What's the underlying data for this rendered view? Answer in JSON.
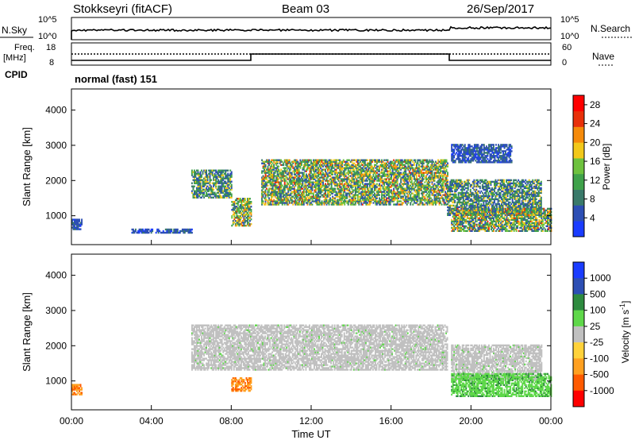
{
  "header": {
    "station": "Stokkseyri (fitACF)",
    "beam": "Beam 03",
    "date": "26/Sep/2017"
  },
  "noise_panel": {
    "left_label": "N.Sky",
    "left_ticks": [
      "10^5",
      "10^0"
    ],
    "right_ticks": [
      "10^5",
      "10^0"
    ],
    "right_label": "N.Search"
  },
  "freq_panel": {
    "left_label_1": "Freq.",
    "left_label_2": "[MHz]",
    "left_ticks": [
      "18",
      "8"
    ],
    "right_ticks": [
      "60",
      "0"
    ],
    "right_label": "Nave",
    "cpid_label": "CPID",
    "cpid_value": "normal (fast) 151"
  },
  "colors": {
    "power_scale": [
      "#1a3cff",
      "#2d4fb4",
      "#3a7a6a",
      "#3fa24a",
      "#6ec23e",
      "#f2c81a",
      "#f58a0a",
      "#e8300a",
      "#ff0000"
    ],
    "velocity_scale": [
      "#ff0000",
      "#ff5a00",
      "#ffa020",
      "#c8c8c8",
      "#c0c0c0",
      "#5fd84a",
      "#2e8b3f",
      "#1a3cff",
      "#1a3cff"
    ],
    "ground_scatter": "#c0c0c0"
  },
  "chart_data": [
    {
      "type": "heatmap",
      "name_axis": "",
      "xlabel": "",
      "ylabel": "Slant Range [km]",
      "xlim": [
        "00:00",
        "24:00"
      ],
      "ylim": [
        180,
        4600
      ],
      "y_ticks": [
        "1000",
        "2000",
        "3000",
        "4000"
      ],
      "colorbar": {
        "label": "Power [dB]",
        "ticks": [
          "4",
          "8",
          "12",
          "16",
          "20",
          "24",
          "28"
        ],
        "range": [
          0,
          30
        ]
      },
      "regions": [
        {
          "t_start": 0.0,
          "t_end": 0.5,
          "r_low": 600,
          "r_high": 900,
          "level": "low"
        },
        {
          "t_start": 3.0,
          "t_end": 6.0,
          "r_low": 500,
          "r_high": 600,
          "level": "low"
        },
        {
          "t_start": 6.0,
          "t_end": 8.0,
          "r_low": 1500,
          "r_high": 2300,
          "level": "mid"
        },
        {
          "t_start": 8.0,
          "t_end": 9.0,
          "r_low": 700,
          "r_high": 1500,
          "level": "high"
        },
        {
          "t_start": 9.5,
          "t_end": 18.8,
          "r_low": 1300,
          "r_high": 2600,
          "level": "high"
        },
        {
          "t_start": 18.8,
          "t_end": 23.5,
          "r_low": 1000,
          "r_high": 2000,
          "level": "mid"
        },
        {
          "t_start": 19.0,
          "t_end": 24.0,
          "r_low": 550,
          "r_high": 1200,
          "level": "high"
        },
        {
          "t_start": 19.0,
          "t_end": 22.0,
          "r_low": 2500,
          "r_high": 3000,
          "level": "low"
        }
      ]
    },
    {
      "type": "heatmap",
      "xlabel": "Time UT",
      "ylabel": "Slant Range [km]",
      "xlim": [
        "00:00",
        "24:00"
      ],
      "ylim": [
        180,
        4600
      ],
      "x_ticks": [
        "00:00",
        "04:00",
        "08:00",
        "12:00",
        "16:00",
        "20:00",
        "00:00"
      ],
      "y_ticks": [
        "1000",
        "2000",
        "3000",
        "4000"
      ],
      "colorbar": {
        "label_main": "Velocity [m s",
        "label_sup": "-1",
        "label_end": "]",
        "ticks": [
          "1000",
          "500",
          "100",
          "25",
          "-25",
          "-100",
          "-500",
          "-1000"
        ]
      },
      "regions": [
        {
          "t_start": 6.0,
          "t_end": 18.8,
          "r_low": 1300,
          "r_high": 2600,
          "level": "ground"
        },
        {
          "t_start": 19.0,
          "t_end": 23.5,
          "r_low": 1000,
          "r_high": 2000,
          "level": "ground"
        },
        {
          "t_start": 19.0,
          "t_end": 24.0,
          "r_low": 550,
          "r_high": 1200,
          "level": "green"
        },
        {
          "t_start": 8.0,
          "t_end": 9.0,
          "r_low": 700,
          "r_high": 1100,
          "level": "orange"
        },
        {
          "t_start": 0.0,
          "t_end": 0.5,
          "r_low": 600,
          "r_high": 900,
          "level": "orange"
        }
      ]
    }
  ]
}
